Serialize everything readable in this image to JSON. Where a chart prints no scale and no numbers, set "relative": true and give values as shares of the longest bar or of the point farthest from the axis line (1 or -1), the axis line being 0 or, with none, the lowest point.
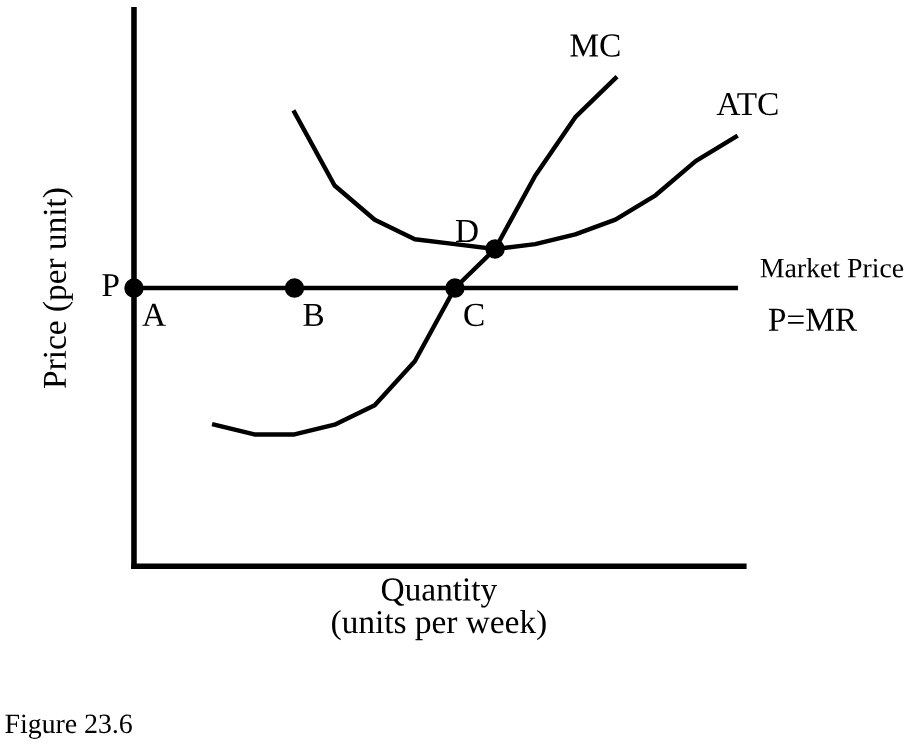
{
  "chart_data": {
    "type": "line",
    "relative": true,
    "xlabel": "Quantity\n(units per week)",
    "ylabel": "Price (per unit)",
    "categories": [
      null,
      null,
      null,
      null,
      null,
      null,
      null,
      null,
      null,
      null,
      null,
      null,
      null,
      null,
      null,
      null
    ],
    "series": [
      {
        "name": "MC",
        "color": "#000000",
        "values": [
          null,
          null,
          0.29,
          0.27,
          0.27,
          0.29,
          0.33,
          0.42,
          0.57,
          0.65,
          0.8,
          0.92,
          1.0,
          null,
          null,
          null
        ]
      },
      {
        "name": "ATC",
        "color": "#000000",
        "values": [
          null,
          null,
          null,
          null,
          0.93,
          0.78,
          0.71,
          0.67,
          0.66,
          0.65,
          0.66,
          0.68,
          0.71,
          0.76,
          0.83,
          0.88
        ]
      },
      {
        "name": "P=MR",
        "color": "#000000",
        "values": [
          0.57,
          0.57,
          0.57,
          0.57,
          0.57,
          0.57,
          0.57,
          0.57,
          0.57,
          0.57,
          0.57,
          0.57,
          0.57,
          0.57,
          0.57,
          0.57
        ]
      }
    ],
    "marker": "none",
    "legend": false,
    "annotations": [
      "P",
      "Market Price",
      "Figure 23.6",
      "A",
      "B",
      "C",
      "D"
    ]
  }
}
